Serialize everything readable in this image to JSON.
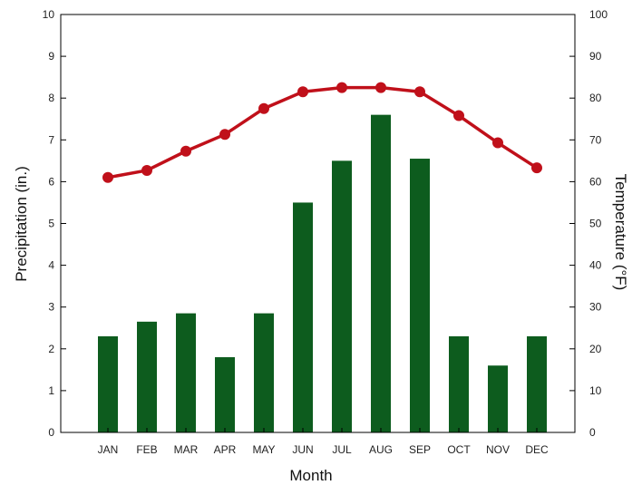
{
  "chart_data": {
    "type": "bar",
    "title": "",
    "xlabel": "Month",
    "ylabel_left": "Precipitation (in.)",
    "ylabel_right": "Temperature (°F)",
    "categories": [
      "JAN",
      "FEB",
      "MAR",
      "APR",
      "MAY",
      "JUN",
      "JUL",
      "AUG",
      "SEP",
      "OCT",
      "NOV",
      "DEC"
    ],
    "ylim_left": [
      0,
      10
    ],
    "ylim_right": [
      0,
      100
    ],
    "yticks_left": [
      "0",
      "1",
      "2",
      "3",
      "4",
      "5",
      "6",
      "7",
      "8",
      "9",
      "10"
    ],
    "yticks_right": [
      "0",
      "10",
      "20",
      "30",
      "40",
      "50",
      "60",
      "70",
      "80",
      "90",
      "100"
    ],
    "series": [
      {
        "type": "bar",
        "axis": "left",
        "color": "#0d5c1e",
        "values": [
          2.3,
          2.65,
          2.85,
          1.8,
          2.85,
          5.5,
          6.5,
          7.6,
          6.55,
          2.3,
          1.6,
          2.3
        ]
      },
      {
        "type": "line",
        "axis": "right",
        "color": "#c0101a",
        "values": [
          61,
          62.7,
          67.3,
          71.3,
          77.5,
          81.5,
          82.5,
          82.5,
          81.5,
          75.8,
          69.3,
          63.3
        ]
      }
    ],
    "grid": false,
    "legend": "none"
  }
}
